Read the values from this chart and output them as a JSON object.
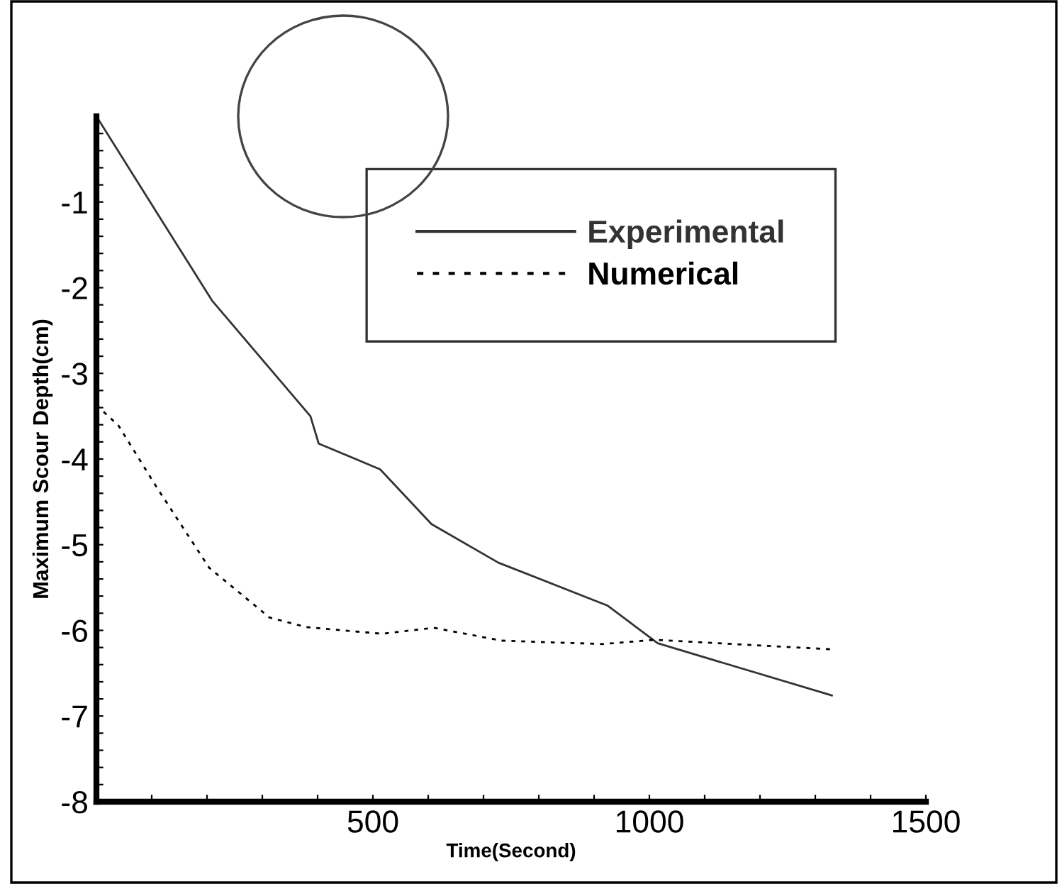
{
  "chart_data": {
    "type": "line",
    "xlabel": "Time(Second)",
    "ylabel": "Maximum Scour Depth(cm)",
    "xlim": [
      0,
      1500
    ],
    "ylim": [
      -8,
      0
    ],
    "xticks": [
      {
        "value": 100,
        "label": null
      },
      {
        "value": 200,
        "label": null
      },
      {
        "value": 300,
        "label": null
      },
      {
        "value": 400,
        "label": null
      },
      500,
      {
        "value": 600,
        "label": null
      },
      {
        "value": 700,
        "label": null
      },
      {
        "value": 800,
        "label": null
      },
      {
        "value": 900,
        "label": null
      },
      1000,
      {
        "value": 1100,
        "label": null
      },
      {
        "value": 1200,
        "label": null
      },
      {
        "value": 1300,
        "label": null
      },
      {
        "value": 1400,
        "label": null
      },
      1500
    ],
    "yticks": [
      -8,
      {
        "value": -7.8,
        "label": null
      },
      {
        "value": -7.6,
        "label": null
      },
      {
        "value": -7.4,
        "label": null
      },
      {
        "value": -7.2,
        "label": null
      },
      -7,
      {
        "value": -6.8,
        "label": null
      },
      {
        "value": -6.6,
        "label": null
      },
      {
        "value": -6.4,
        "label": null
      },
      {
        "value": -6.2,
        "label": null
      },
      -6,
      {
        "value": -5.8,
        "label": null
      },
      {
        "value": -5.6,
        "label": null
      },
      {
        "value": -5.4,
        "label": null
      },
      {
        "value": -5.2,
        "label": null
      },
      -5,
      {
        "value": -4.8,
        "label": null
      },
      {
        "value": -4.6,
        "label": null
      },
      {
        "value": -4.4,
        "label": null
      },
      {
        "value": -4.2,
        "label": null
      },
      -4,
      {
        "value": -3.8,
        "label": null
      },
      {
        "value": -3.6,
        "label": null
      },
      {
        "value": -3.4,
        "label": null
      },
      {
        "value": -3.2,
        "label": null
      },
      -3,
      {
        "value": -2.8,
        "label": null
      },
      {
        "value": -2.6,
        "label": null
      },
      {
        "value": -2.4,
        "label": null
      },
      {
        "value": -2.2,
        "label": null
      },
      -2,
      {
        "value": -1.8,
        "label": null
      },
      {
        "value": -1.6,
        "label": null
      },
      {
        "value": -1.4,
        "label": null
      },
      {
        "value": -1.2,
        "label": null
      },
      -1,
      {
        "value": -0.8,
        "label": null
      },
      {
        "value": -0.6,
        "label": null
      },
      {
        "value": -0.4,
        "label": null
      },
      {
        "value": -0.2,
        "label": null
      }
    ],
    "grid": false,
    "legend": "top right",
    "marker": "none",
    "series": [
      {
        "name": "Experimental",
        "color": "#333333",
        "line_style": "solid",
        "x": [
          0,
          209,
          387,
          402,
          513,
          606,
          727,
          924,
          1015,
          1330
        ],
        "values": [
          0,
          -2.15,
          -3.5,
          -3.82,
          -4.12,
          -4.76,
          -5.21,
          -5.71,
          -6.15,
          -6.76
        ]
      },
      {
        "name": "Numerical",
        "color": "#000000",
        "line_style": "dotted",
        "x": [
          0,
          40,
          109,
          204,
          313,
          378,
          516,
          610,
          733,
          915,
          1010,
          1327
        ],
        "values": [
          -3.37,
          -3.61,
          -4.33,
          -5.27,
          -5.85,
          -5.96,
          -6.04,
          -5.97,
          -6.12,
          -6.16,
          -6.11,
          -6.22
        ]
      }
    ]
  }
}
